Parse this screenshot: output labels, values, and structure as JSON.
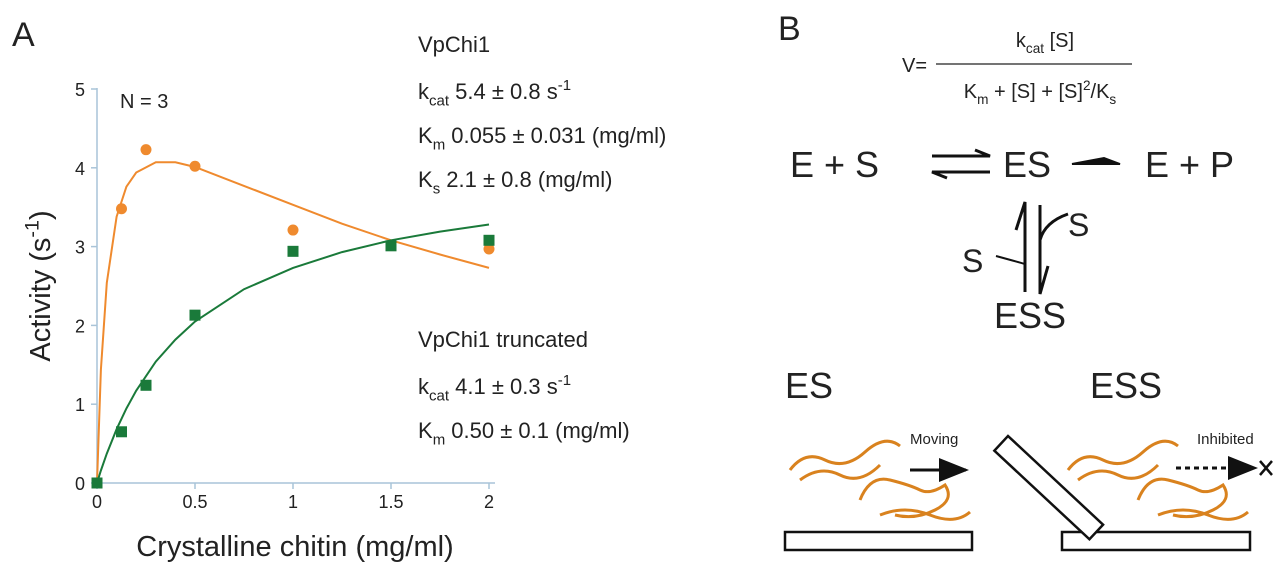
{
  "chart_data": {
    "type": "scatter",
    "panel_label": "A",
    "xlabel": "Crystalline chitin (mg/ml)",
    "ylabel": [
      "Activity (s",
      {
        "sup": "-1"
      },
      ")"
    ],
    "annotation": "N = 3",
    "xlim": [
      0,
      2
    ],
    "ylim": [
      0,
      5
    ],
    "xticks": [
      0,
      0.5,
      1,
      1.5,
      2
    ],
    "yticks": [
      0,
      1,
      2,
      3,
      4,
      5
    ],
    "grid": false,
    "series": [
      {
        "name": "VpChi1",
        "color": "#ef8a2e",
        "marker": "circle",
        "x": [
          0.125,
          0.25,
          0.5,
          1,
          2
        ],
        "values": [
          3.48,
          4.23,
          4.02,
          3.21,
          2.97
        ],
        "params": [
          [
            "k",
            {
              "sub": "cat"
            },
            " 5.4 ± 0.8 s",
            {
              "sup": "-1"
            }
          ],
          [
            "K",
            {
              "sub": "m"
            },
            " 0.055 ± 0.031 (mg/ml)"
          ],
          [
            "K",
            {
              "sub": "s"
            },
            " 2.1 ± 0.8 (mg/ml)"
          ]
        ]
      },
      {
        "name": "VpChi1 truncated",
        "color": "#1a7a3a",
        "marker": "square",
        "x": [
          0,
          0.125,
          0.25,
          0.5,
          1,
          1.5,
          2
        ],
        "values": [
          0,
          0.65,
          1.24,
          2.13,
          2.94,
          3.01,
          3.08
        ],
        "params": [
          [
            "k",
            {
              "sub": "cat"
            },
            " 4.1 ± 0.3 s",
            {
              "sup": "-1"
            }
          ],
          [
            "K",
            {
              "sub": "m"
            },
            " 0.50 ± 0.1 (mg/ml)"
          ]
        ]
      }
    ],
    "curves": [
      {
        "color": "#ef8a2e",
        "x": [
          0,
          0.02,
          0.05,
          0.1,
          0.15,
          0.2,
          0.3,
          0.4,
          0.5,
          0.75,
          1,
          1.25,
          1.5,
          1.75,
          2
        ],
        "values": [
          0,
          1.44,
          2.54,
          3.38,
          3.76,
          3.94,
          4.07,
          4.07,
          4.01,
          3.77,
          3.53,
          3.29,
          3.08,
          2.9,
          2.73
        ]
      },
      {
        "color": "#1a7a3a",
        "x": [
          0,
          0.02,
          0.05,
          0.1,
          0.15,
          0.2,
          0.3,
          0.4,
          0.5,
          0.75,
          1,
          1.25,
          1.5,
          1.75,
          2
        ],
        "values": [
          0,
          0.158,
          0.373,
          0.683,
          0.946,
          1.171,
          1.54,
          1.82,
          2.05,
          2.46,
          2.73,
          2.93,
          3.08,
          3.19,
          3.28
        ]
      }
    ]
  },
  "diagram": {
    "panel_label": "B",
    "equation": {
      "lhs": "V=",
      "numerator": [
        "k",
        {
          "sub": "cat"
        },
        " [S]"
      ],
      "denominator": [
        "K",
        {
          "sub": "m"
        },
        " + [S] + [S]",
        {
          "sup": "2"
        },
        "/K",
        {
          "sub": "s"
        }
      ]
    },
    "scheme": {
      "left": "E + S",
      "middle": "ES",
      "right": "E + P",
      "s_on": "S",
      "s_off": "S",
      "bottom": "ESS"
    },
    "panels": [
      {
        "title": "ES",
        "caption": "Moving"
      },
      {
        "title": "ESS",
        "caption": "Inhibited"
      }
    ]
  }
}
